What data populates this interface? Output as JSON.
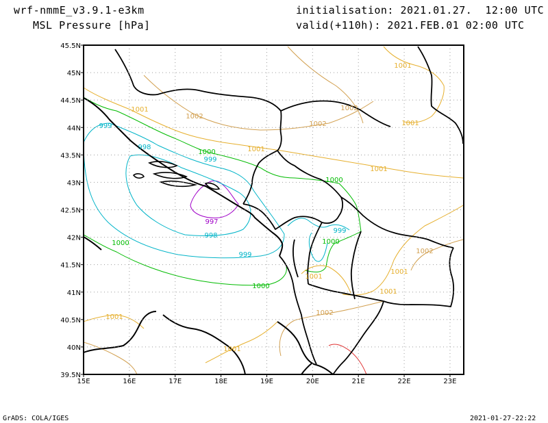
{
  "header": {
    "model": "wrf-nmmE_v3.9.1-e3km",
    "field": "MSL Pressure [hPa]",
    "init": "initialisation: 2021.01.27.  12:00 UTC",
    "valid": "valid(+110h): 2021.FEB.01 02:00 UTC"
  },
  "footer": {
    "left": "GrADS: COLA/IGES",
    "right": "2021-01-27-22:22"
  },
  "axes": {
    "x_ticks": [
      "15E",
      "16E",
      "17E",
      "18E",
      "19E",
      "20E",
      "21E",
      "22E",
      "23E"
    ],
    "y_ticks": [
      "45.5N",
      "45N",
      "44.5N",
      "44N",
      "43.5N",
      "43N",
      "42.5N",
      "42N",
      "41.5N",
      "41N",
      "40.5N",
      "40N",
      "39.5N"
    ],
    "lon_range": [
      15,
      23.3
    ],
    "lat_range": [
      39.5,
      45.5
    ],
    "grid": true
  },
  "colors": {
    "c997": "#a000c8",
    "c998": "#00b4c8",
    "c999": "#00b4c8",
    "c1000": "#00bb00",
    "c1001": "#e6af2d",
    "c1002": "#d2a050",
    "c1003": "#e03030",
    "coast": "#000000"
  },
  "contour_labels": [
    {
      "text": "997",
      "color": "c997"
    },
    {
      "text": "998",
      "color": "c998"
    },
    {
      "text": "998",
      "color": "c998"
    },
    {
      "text": "999",
      "color": "c999"
    },
    {
      "text": "999",
      "color": "c999"
    },
    {
      "text": "999",
      "color": "c999"
    },
    {
      "text": "999",
      "color": "c999"
    },
    {
      "text": "1000",
      "color": "c1000"
    },
    {
      "text": "1000",
      "color": "c1000"
    },
    {
      "text": "1000",
      "color": "c1000"
    },
    {
      "text": "1000",
      "color": "c1000"
    },
    {
      "text": "1000",
      "color": "c1000"
    },
    {
      "text": "1001",
      "color": "c1001"
    },
    {
      "text": "1001",
      "color": "c1001"
    },
    {
      "text": "1001",
      "color": "c1001"
    },
    {
      "text": "1001",
      "color": "c1001"
    },
    {
      "text": "1001",
      "color": "c1001"
    },
    {
      "text": "1001",
      "color": "c1001"
    },
    {
      "text": "1001",
      "color": "c1001"
    },
    {
      "text": "1001",
      "color": "c1001"
    },
    {
      "text": "1001",
      "color": "c1001"
    },
    {
      "text": "1001",
      "color": "c1001"
    },
    {
      "text": "1002",
      "color": "c1002"
    },
    {
      "text": "1002",
      "color": "c1002"
    },
    {
      "text": "1002",
      "color": "c1002"
    },
    {
      "text": "1002",
      "color": "c1002"
    },
    {
      "text": "1002",
      "color": "c1002"
    }
  ]
}
